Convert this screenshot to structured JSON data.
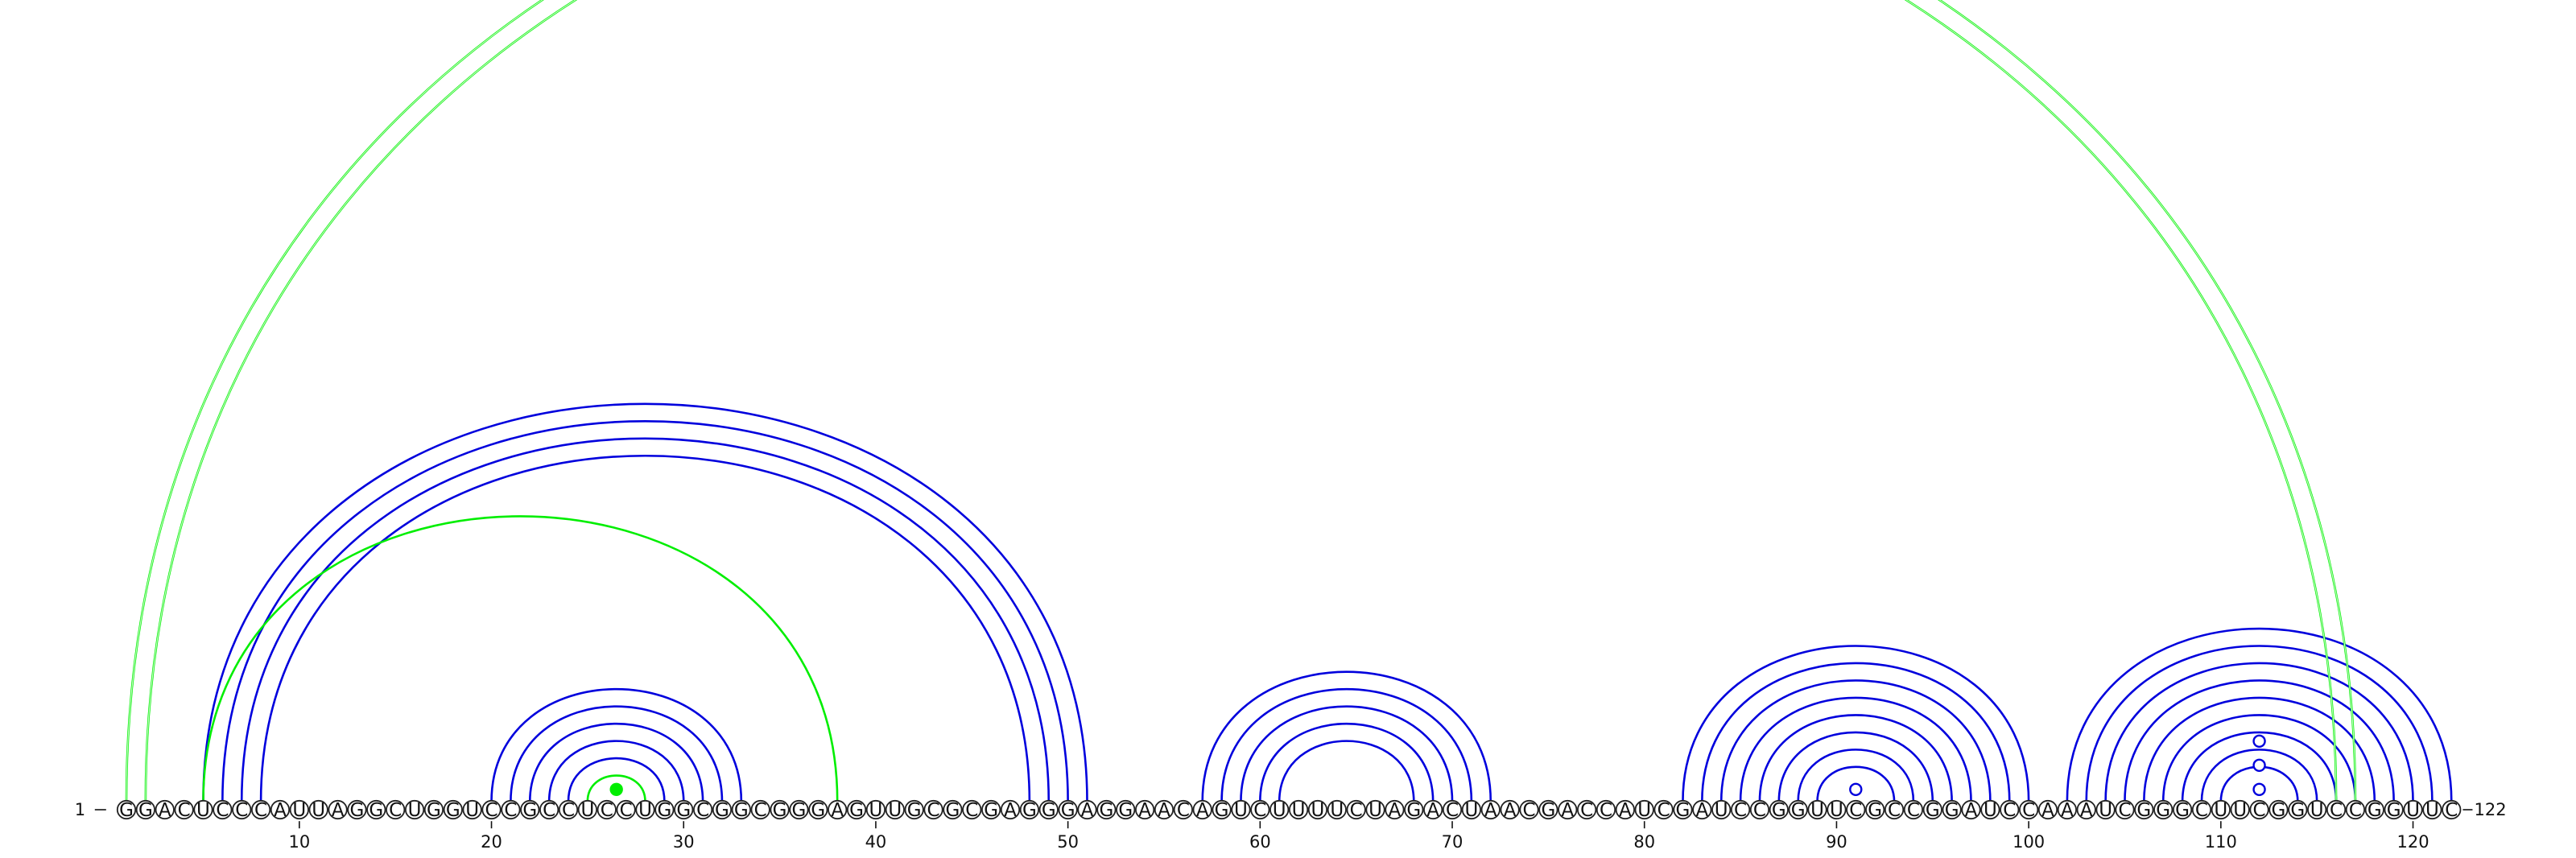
{
  "sequence": "GGACUCCCAUUAGGCUGGUCCGCCUCCUGGCGGCGGGAGUUGCGCGAGGGAGGAACAGUCUUUUCUAGACUAACGACCAUCGAUCCGGUUCGCCGGAUCCAAAUCGGGCUUCGGUCCGGUUC",
  "start_label": "1",
  "end_label": "122",
  "ticks": [
    10,
    20,
    30,
    40,
    50,
    60,
    70,
    80,
    90,
    100,
    110,
    120
  ],
  "colors": {
    "canonical": "#0000dd",
    "noncanonical": "#00ee00",
    "nucleotide_outline": "#222222"
  },
  "pairs": {
    "canonical": [
      [
        5,
        51
      ],
      [
        6,
        50
      ],
      [
        7,
        49
      ],
      [
        8,
        48
      ],
      [
        20,
        33
      ],
      [
        21,
        32
      ],
      [
        22,
        31
      ],
      [
        23,
        30
      ],
      [
        24,
        29
      ],
      [
        57,
        72
      ],
      [
        58,
        71
      ],
      [
        59,
        70
      ],
      [
        60,
        69
      ],
      [
        61,
        68
      ],
      [
        82,
        100
      ],
      [
        83,
        99
      ],
      [
        84,
        98
      ],
      [
        85,
        97
      ],
      [
        86,
        96
      ],
      [
        87,
        95
      ],
      [
        88,
        94
      ],
      [
        89,
        93
      ],
      [
        102,
        122
      ],
      [
        103,
        121
      ],
      [
        104,
        120
      ],
      [
        105,
        119
      ],
      [
        106,
        118
      ],
      [
        107,
        117
      ],
      [
        108,
        116
      ],
      [
        109,
        115
      ],
      [
        110,
        114
      ]
    ],
    "noncanonical": [
      [
        1,
        117
      ],
      [
        2,
        116
      ],
      [
        5,
        38
      ],
      [
        25,
        28
      ]
    ]
  },
  "markers": [
    {
      "pos": 26.5,
      "level": 1,
      "type": "filled",
      "color": "noncanonical"
    },
    {
      "pos": 91,
      "level": 1,
      "type": "open",
      "color": "canonical"
    },
    {
      "pos": 112,
      "level": 1,
      "type": "open",
      "color": "canonical"
    },
    {
      "pos": 112,
      "level": 3,
      "type": "open",
      "color": "canonical"
    },
    {
      "pos": 112,
      "level": 5,
      "type": "open",
      "color": "canonical"
    }
  ]
}
